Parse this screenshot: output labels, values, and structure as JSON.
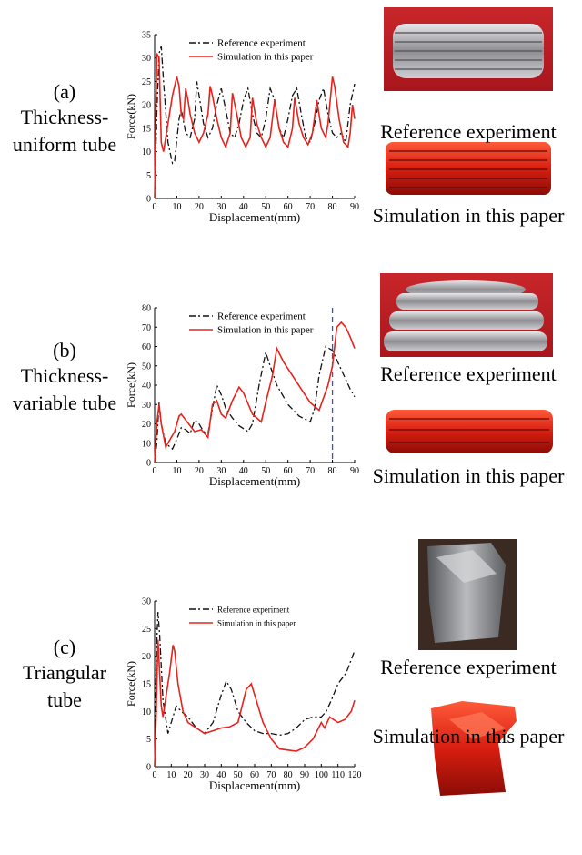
{
  "chart_data": [
    {
      "type": "line",
      "xlabel": "Displacement(mm)",
      "ylabel": "Force(kN)",
      "xlim": [
        0,
        90
      ],
      "ylim": [
        0,
        35
      ],
      "xticks": [
        0,
        10,
        20,
        30,
        40,
        50,
        60,
        70,
        80,
        90
      ],
      "yticks": [
        0,
        5,
        10,
        15,
        20,
        25,
        30,
        35
      ],
      "series": [
        {
          "name": "Reference experiment",
          "color": "#111111",
          "dash": "dashdot",
          "x": [
            0,
            1,
            2,
            3,
            4,
            6,
            8,
            9,
            11,
            12,
            14,
            16,
            18,
            19,
            20,
            22,
            24,
            26,
            28,
            30,
            32,
            34,
            36,
            38,
            40,
            42,
            44,
            46,
            48,
            50,
            52,
            54,
            56,
            58,
            60,
            62,
            64,
            66,
            68,
            70,
            72,
            74,
            76,
            78,
            80,
            82,
            84,
            86,
            88,
            90
          ],
          "values": [
            0,
            18,
            31,
            32.5,
            25,
            12,
            7.5,
            8,
            17,
            19,
            14,
            13,
            17,
            25,
            22,
            16,
            13,
            15,
            20,
            23.5,
            19,
            14,
            13,
            16,
            21,
            23.5,
            18,
            14,
            13,
            17,
            23.5,
            21,
            15,
            13,
            17,
            22,
            23.5,
            18,
            13,
            12,
            16,
            21,
            23.5,
            18,
            14,
            13,
            14,
            12,
            20,
            24.5
          ]
        },
        {
          "name": "Simulation in this paper",
          "color": "#e8231c",
          "dash": "solid",
          "x": [
            0,
            1,
            2,
            3,
            4,
            6,
            8,
            10,
            11,
            12,
            13,
            14,
            15,
            16,
            18,
            20,
            22,
            24,
            25,
            26,
            28,
            30,
            32,
            34,
            35,
            37,
            39,
            41,
            43,
            44,
            46,
            48,
            50,
            52,
            54,
            56,
            58,
            60,
            62,
            63,
            65,
            67,
            69,
            71,
            73,
            75,
            77,
            78,
            80,
            81,
            83,
            85,
            87,
            88,
            89,
            90
          ],
          "values": [
            0,
            31,
            30,
            12,
            10,
            16,
            22,
            26,
            24,
            18,
            17,
            23.5,
            21,
            18,
            14,
            12,
            14,
            18,
            24,
            22,
            17,
            13,
            11,
            14,
            22.5,
            18,
            13,
            11,
            13,
            21.5,
            16,
            13,
            11,
            13,
            21,
            15,
            12,
            11,
            15,
            21.5,
            16,
            13,
            11.5,
            14,
            21,
            15,
            13,
            16,
            26,
            24,
            17,
            12,
            11,
            14,
            20,
            17
          ]
        }
      ]
    },
    {
      "type": "line",
      "xlabel": "Displacement(mm)",
      "ylabel": "Force(kN)",
      "xlim": [
        0,
        90
      ],
      "ylim": [
        0,
        80
      ],
      "xticks": [
        0,
        10,
        20,
        30,
        40,
        50,
        60,
        70,
        80,
        90
      ],
      "yticks": [
        0,
        10,
        20,
        30,
        40,
        50,
        60,
        70,
        80
      ],
      "vline": {
        "x": 80,
        "color": "#3a4fc4"
      },
      "series": [
        {
          "name": "Reference experiment",
          "color": "#111111",
          "dash": "dashdot",
          "x": [
            0,
            1,
            2,
            3,
            5,
            8,
            10,
            12,
            14,
            16,
            18,
            20,
            22,
            24,
            26,
            28,
            30,
            32,
            35,
            38,
            42,
            44,
            47,
            50,
            52,
            55,
            60,
            65,
            70,
            72,
            74,
            77,
            80,
            84,
            88,
            90
          ],
          "values": [
            0,
            10,
            31,
            20,
            10,
            7,
            12,
            18,
            17,
            15,
            22,
            20,
            16,
            15,
            28,
            40,
            35,
            28,
            23,
            19,
            16,
            20,
            40,
            57,
            50,
            40,
            30,
            24,
            21,
            28,
            45,
            60,
            58,
            48,
            38,
            34
          ]
        },
        {
          "name": "Simulation in this paper",
          "color": "#e8231c",
          "dash": "solid",
          "x": [
            0,
            1,
            2,
            3,
            5,
            7,
            9,
            11,
            12,
            14,
            16,
            18,
            21,
            24,
            26,
            28,
            30,
            32,
            35,
            38,
            40,
            44,
            48,
            50,
            53,
            55,
            58,
            62,
            66,
            70,
            74,
            78,
            80,
            82,
            84,
            86,
            88,
            90
          ],
          "values": [
            0,
            20,
            30,
            20,
            8,
            12,
            16,
            24,
            25,
            22,
            19,
            16,
            17,
            13,
            30,
            32,
            25,
            23,
            32,
            39,
            36,
            25,
            21,
            31,
            45,
            59,
            52,
            45,
            38,
            31,
            27,
            40,
            50,
            70,
            72.5,
            70,
            65,
            59
          ]
        }
      ]
    },
    {
      "type": "line",
      "xlabel": "Displacement(mm)",
      "ylabel": "Force(kN)",
      "xlim": [
        0,
        120
      ],
      "ylim": [
        0,
        30
      ],
      "xticks": [
        0,
        10,
        20,
        30,
        40,
        50,
        60,
        70,
        80,
        90,
        100,
        110,
        120
      ],
      "yticks": [
        0,
        5,
        10,
        15,
        20,
        25,
        30
      ],
      "series": [
        {
          "name": "Reference experiment",
          "color": "#111111",
          "dash": "dashdot",
          "x": [
            0,
            1,
            2,
            3,
            5,
            8,
            10,
            13,
            16,
            20,
            25,
            30,
            35,
            40,
            43,
            46,
            50,
            55,
            60,
            65,
            70,
            75,
            80,
            85,
            90,
            95,
            100,
            103,
            106,
            110,
            115,
            120
          ],
          "values": [
            0,
            20,
            28,
            24,
            12,
            6,
            8,
            11,
            10,
            9,
            7,
            6,
            8,
            13,
            15.5,
            14,
            10,
            8,
            6.5,
            6,
            6,
            5.7,
            6,
            7,
            8.5,
            9,
            9,
            10,
            12,
            15,
            17,
            21
          ]
        },
        {
          "name": "Simulation in this paper",
          "color": "#e8231c",
          "dash": "solid",
          "x": [
            0,
            1,
            2,
            3,
            4,
            5,
            7,
            9,
            11,
            12,
            14,
            17,
            20,
            25,
            30,
            35,
            40,
            45,
            50,
            55,
            58,
            60,
            65,
            70,
            75,
            80,
            85,
            90,
            95,
            100,
            102,
            105,
            110,
            114,
            118,
            120
          ],
          "values": [
            0,
            10,
            23,
            17,
            11,
            9,
            13,
            17,
            22,
            21,
            15,
            10,
            8,
            7,
            6,
            6.5,
            7,
            7.2,
            8,
            14,
            15,
            13,
            8,
            5,
            3.2,
            3,
            2.8,
            3.5,
            5,
            8,
            7,
            9,
            8,
            8.5,
            10,
            12
          ]
        }
      ]
    }
  ],
  "panels": [
    {
      "label": "(a)",
      "description": "Thickness-uniform tube",
      "captions": [
        "Reference experiment",
        "Simulation in this paper"
      ]
    },
    {
      "label": "(b)",
      "description": "Thickness-variable tube",
      "captions": [
        "Reference experiment",
        "Simulation in this paper"
      ]
    },
    {
      "label": "(c)",
      "description": "Triangular tube",
      "captions": [
        "Reference experiment",
        "Simulation in this paper"
      ]
    }
  ]
}
